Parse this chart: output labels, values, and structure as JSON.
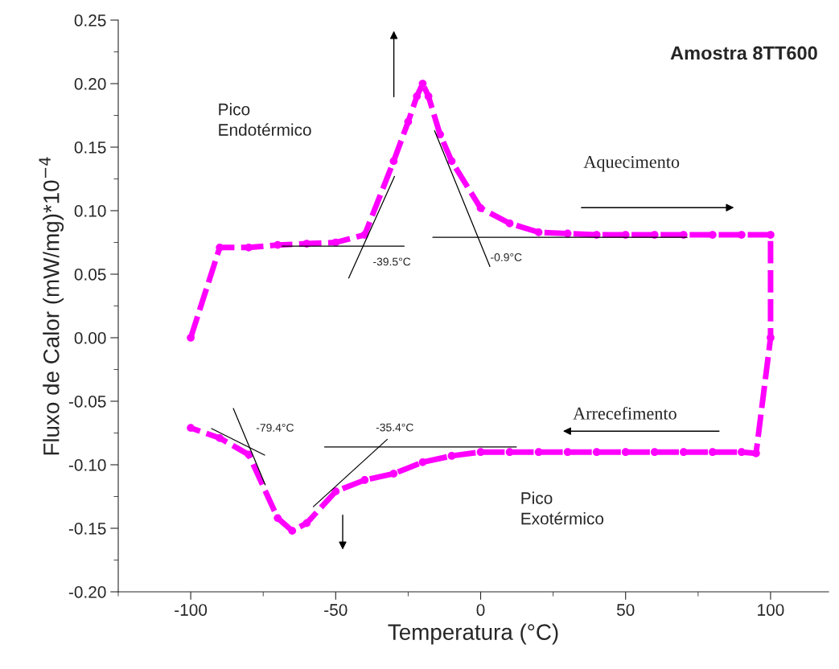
{
  "chart_data": {
    "type": "line",
    "title": "Amostra 8TT600",
    "xlabel": "Temperatura (°C)",
    "ylabel": "Fluxo de Calor (mW/mg)*10$^{−4}$",
    "xlim": [
      -125,
      120
    ],
    "ylim": [
      -0.2,
      0.25
    ],
    "xticks": [
      -100,
      -50,
      0,
      50,
      100
    ],
    "yticks": [
      {
        "value": -0.2,
        "label": "-0.20"
      },
      {
        "value": -0.15,
        "label": "-0.15"
      },
      {
        "value": -0.1,
        "label": "-0.10"
      },
      {
        "value": -0.05,
        "label": "-0.05"
      },
      {
        "value": 0,
        "label": "0.00"
      },
      {
        "value": 0.05,
        "label": "0.05"
      },
      {
        "value": 0.1,
        "label": "0.10"
      },
      {
        "value": 0.15,
        "label": "0.15"
      },
      {
        "value": 0.2,
        "label": "0.20"
      },
      {
        "value": 0.25,
        "label": "0.25"
      }
    ],
    "grid": false,
    "legend": false,
    "series": [
      {
        "color": "#ff00ff",
        "marker": "circle",
        "line_style": "dashed",
        "x": [
          -100,
          -90,
          -80,
          -70,
          -60,
          -50,
          -40,
          -30,
          -25,
          -22,
          -20,
          -18,
          -14,
          -10,
          0,
          10,
          20,
          30,
          40,
          50,
          60,
          70,
          80,
          90,
          100,
          100,
          95,
          90,
          80,
          70,
          60,
          50,
          40,
          30,
          20,
          10,
          0,
          -10,
          -20,
          -30,
          -40,
          -50,
          -60,
          -65,
          -70,
          -80,
          -90,
          -100
        ],
        "values": [
          0,
          0.071,
          0.071,
          0.073,
          0.074,
          0.075,
          0.081,
          0.139,
          0.17,
          0.19,
          0.2,
          0.19,
          0.16,
          0.139,
          0.102,
          0.09,
          0.083,
          0.082,
          0.081,
          0.081,
          0.081,
          0.081,
          0.081,
          0.081,
          0.081,
          0,
          -0.091,
          -0.09,
          -0.09,
          -0.09,
          -0.09,
          -0.09,
          -0.09,
          -0.09,
          -0.09,
          -0.09,
          -0.09,
          -0.093,
          -0.098,
          -0.107,
          -0.112,
          -0.121,
          -0.146,
          -0.152,
          -0.142,
          -0.092,
          -0.079,
          -0.071
        ]
      },
      {
        "color": "#000000",
        "marker": "none",
        "line_style": "solid",
        "x": [
          -68.5,
          -26.4
        ],
        "values": [
          0.072,
          0.072
        ]
      },
      {
        "color": "#000000",
        "marker": "none",
        "line_style": "solid",
        "x": [
          -45.5,
          -29.7
        ],
        "values": [
          0.047,
          0.127
        ]
      },
      {
        "color": "#000000",
        "marker": "none",
        "line_style": "solid",
        "x": [
          -16.5,
          71.2
        ],
        "values": [
          0.079,
          0.079
        ]
      },
      {
        "color": "#000000",
        "marker": "none",
        "line_style": "solid",
        "x": [
          -15.9,
          3.2
        ],
        "values": [
          0.163,
          0.056
        ]
      },
      {
        "color": "#000000",
        "marker": "none",
        "line_style": "solid",
        "x": [
          -92.8,
          -74.5
        ],
        "values": [
          -0.0715,
          -0.0924
        ]
      },
      {
        "color": "#000000",
        "marker": "none",
        "line_style": "solid",
        "x": [
          -85.3,
          -74.3
        ],
        "values": [
          -0.0557,
          -0.1158
        ]
      },
      {
        "color": "#000000",
        "marker": "none",
        "line_style": "solid",
        "x": [
          -53.8,
          12.3
        ],
        "values": [
          -0.086,
          -0.086
        ]
      },
      {
        "color": "#000000",
        "marker": "none",
        "line_style": "solid",
        "x": [
          -57.7,
          -32.2
        ],
        "values": [
          -0.133,
          -0.08
        ]
      }
    ],
    "annotations": [
      {
        "text": "-39.5°C",
        "x": -39.5,
        "y": 0.072
      },
      {
        "text": "-0.9°C",
        "x": -0.9,
        "y": 0.079
      },
      {
        "text": "-79.4°C",
        "x": -79.4,
        "y": -0.088
      },
      {
        "text": "-35.4°C",
        "x": -35.4,
        "y": -0.086
      },
      "Pico\nEndotérmico",
      "Pico\nExotérmico",
      "Aquecimento",
      "Arrecefimento"
    ]
  }
}
